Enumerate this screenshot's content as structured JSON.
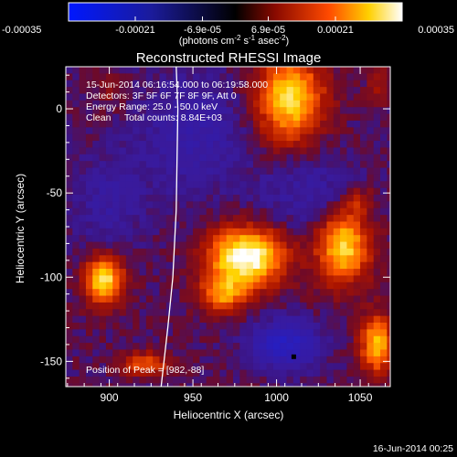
{
  "chart_data": {
    "type": "heatmap",
    "title": "Reconstructed RHESSI Image",
    "xlabel": "Heliocentric X (arcsec)",
    "ylabel": "Heliocentric Y (arcsec)",
    "xlim": [
      874,
      1068
    ],
    "ylim": [
      -165,
      25
    ],
    "x_ticks": [
      900,
      950,
      1000,
      1050
    ],
    "y_ticks": [
      0,
      -50,
      -100,
      -150
    ],
    "colorbar": {
      "ticks": [
        "-0.00035",
        "-0.00021",
        "-6.9e-05",
        "6.9e-05",
        "0.00021",
        "0.00035"
      ],
      "values": [
        -0.00035,
        -0.00021,
        -6.9e-05,
        6.9e-05,
        0.00021,
        0.00035
      ],
      "range": [
        -0.00035,
        0.00035
      ],
      "unit_label": "(photons cm",
      "unit_exp1": "-2",
      "unit_mid": " s",
      "unit_exp2": "-1",
      "unit_mid2": " asec",
      "unit_exp3": "-2",
      "unit_end": ")"
    },
    "annotations": [
      "15-Jun-2014 06:16:54.000 to 06:19:58.000",
      "Detectors: 3F 5F 6F 7F 8F 9F, Att 0",
      "Energy Range: 25.0 - 50.0 keV",
      "Clean     Total counts: 8.84E+03"
    ],
    "peak_label": "Position of Peak = [982,-88]",
    "peak": [
      982,
      -88
    ],
    "limb_curve": [
      [
        940,
        25
      ],
      [
        941,
        0
      ],
      [
        940.5,
        -30
      ],
      [
        940,
        -60
      ],
      [
        938,
        -100
      ],
      [
        935,
        -130
      ],
      [
        931,
        -165
      ]
    ],
    "sources": [
      {
        "x": 982,
        "y": -88,
        "sx": 16,
        "sy": 12,
        "amp": 1.0
      },
      {
        "x": 968,
        "y": -110,
        "sx": 10,
        "sy": 8,
        "amp": 0.55
      },
      {
        "x": 1008,
        "y": 6,
        "sx": 14,
        "sy": 18,
        "amp": 0.8
      },
      {
        "x": 1040,
        "y": -82,
        "sx": 11,
        "sy": 15,
        "amp": 0.8
      },
      {
        "x": 897,
        "y": -102,
        "sx": 8,
        "sy": 10,
        "amp": 0.85
      },
      {
        "x": 1060,
        "y": -140,
        "sx": 7,
        "sy": 12,
        "amp": 0.7
      },
      {
        "x": 922,
        "y": -152,
        "sx": 10,
        "sy": 5,
        "amp": 0.45
      },
      {
        "x": 1050,
        "y": -55,
        "sx": 6,
        "sy": 6,
        "amp": 0.25
      },
      {
        "x": 900,
        "y": 10,
        "sx": 6,
        "sy": 6,
        "amp": 0.15
      },
      {
        "x": 1062,
        "y": 15,
        "sx": 5,
        "sy": 8,
        "amp": 0.2
      }
    ],
    "negatives": [
      {
        "x": 1005,
        "y": -140,
        "sx": 14,
        "sy": 10,
        "amp": 0.5
      },
      {
        "x": 1020,
        "y": -50,
        "sx": 22,
        "sy": 18,
        "amp": 0.2
      },
      {
        "x": 950,
        "y": -15,
        "sx": 22,
        "sy": 25,
        "amp": 0.25
      },
      {
        "x": 900,
        "y": -55,
        "sx": 15,
        "sy": 20,
        "amp": 0.2
      }
    ]
  },
  "footer": {
    "timestamp": "16-Jun-2014 00:25"
  }
}
